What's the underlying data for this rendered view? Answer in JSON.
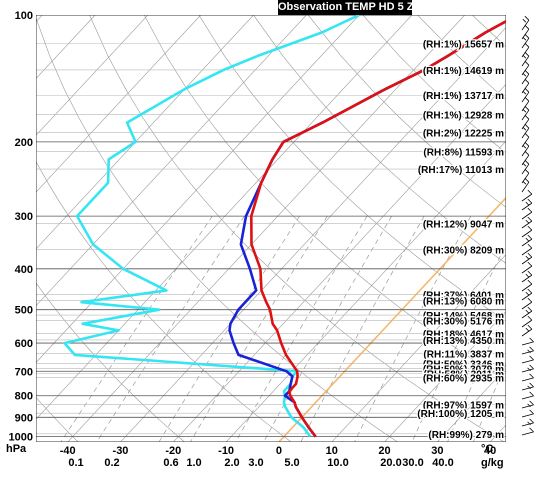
{
  "title": "Observation TEMP HD 5 Z",
  "chart_data": {
    "type": "line",
    "subtype": "skew-t log-p sounding",
    "x_axis": {
      "label": "°C",
      "ticks": [
        -40,
        -30,
        -20,
        -10,
        0,
        10,
        20,
        30,
        40
      ],
      "range": [
        -46,
        43
      ]
    },
    "y_axis": {
      "label": "hPa",
      "scale": "log",
      "ticks": [
        100,
        200,
        300,
        400,
        500,
        600,
        700,
        800,
        900,
        1000
      ],
      "range": [
        1030,
        100
      ]
    },
    "mixing_ratio_axis": {
      "label": "g/kg",
      "ticks": [
        "0.1",
        "0.2",
        "0.6",
        "1.0",
        "2.0",
        "3.0",
        "5.0",
        "10.0",
        "20.0",
        "30.0",
        "40.0"
      ]
    },
    "pressure_levels": [
      100,
      110,
      125,
      135,
      150,
      180,
      200,
      220,
      250,
      300,
      350,
      400,
      450,
      480,
      500,
      540,
      560,
      600,
      640,
      700,
      720,
      750,
      780,
      800,
      830,
      850,
      900,
      950,
      1000
    ],
    "series": [
      {
        "name": "Temperature",
        "color": "#dd1111",
        "values": [
          -30,
          -33,
          -36,
          -38,
          -42,
          -48,
          -52,
          -51,
          -49,
          -45,
          -40,
          -34,
          -30,
          -27,
          -25,
          -22,
          -20,
          -17,
          -14,
          -9,
          -8,
          -7,
          -7,
          -6,
          -4,
          -3,
          0,
          3,
          6
        ]
      },
      {
        "name": "Virtual temperature",
        "color": "#1a22d6",
        "values": [
          -30,
          -33,
          -36,
          -38,
          -42,
          -48,
          -52,
          -51,
          -49,
          -46,
          -42,
          -36,
          -31,
          -31,
          -31,
          -30,
          -29,
          -26,
          -23,
          -11,
          -9,
          -8,
          -7,
          -7,
          -4,
          -3,
          0,
          3,
          6
        ]
      },
      {
        "name": "Dew point",
        "color": "#35e6f2",
        "values": [
          -60,
          -64,
          -72,
          -76,
          -80,
          -85,
          -80,
          -82,
          -78,
          -78,
          -70,
          -60,
          -48,
          -62,
          -46,
          -58,
          -50,
          -58,
          -54,
          -9,
          -9,
          -8,
          -8,
          -7,
          -6,
          -5,
          -2,
          2,
          5
        ]
      }
    ],
    "level_annotations": [
      {
        "p": 117,
        "text": "(RH:1%) 15657 m"
      },
      {
        "p": 135,
        "text": "(RH:1%) 14619 m"
      },
      {
        "p": 155,
        "text": "(RH:1%) 13717 m"
      },
      {
        "p": 172,
        "text": "(RH:1%) 12928 m"
      },
      {
        "p": 190,
        "text": "(RH:2%) 12225 m"
      },
      {
        "p": 211,
        "text": "(RH:8%) 11593 m"
      },
      {
        "p": 232,
        "text": "(RH:17%) 11013 m"
      },
      {
        "p": 312,
        "text": "(RH:12%) 9047 m"
      },
      {
        "p": 360,
        "text": "(RH:30%) 8209 m"
      },
      {
        "p": 460,
        "text": "(RH:37%) 6401 m"
      },
      {
        "p": 475,
        "text": "(RH:13%) 6080 m"
      },
      {
        "p": 515,
        "text": "(RH:14%) 5468 m"
      },
      {
        "p": 530,
        "text": "(RH:30%) 5176 m"
      },
      {
        "p": 570,
        "text": "(RH:18%) 4617 m"
      },
      {
        "p": 590,
        "text": "(RH:13%) 4350 m"
      },
      {
        "p": 635,
        "text": "(RH:11%) 3837 m"
      },
      {
        "p": 670,
        "text": "(RH:50%) 3346 m"
      },
      {
        "p": 690,
        "text": "(RH:50%) 3079 m"
      },
      {
        "p": 708,
        "text": "(RH:58%) 3011 m"
      },
      {
        "p": 725,
        "text": "(RH:60%) 2935 m"
      },
      {
        "p": 840,
        "text": "(RH:97%) 1597 m"
      },
      {
        "p": 880,
        "text": "(RH:100%) 1205 m"
      },
      {
        "p": 985,
        "text": "(RH:99%) 279 m"
      }
    ]
  }
}
